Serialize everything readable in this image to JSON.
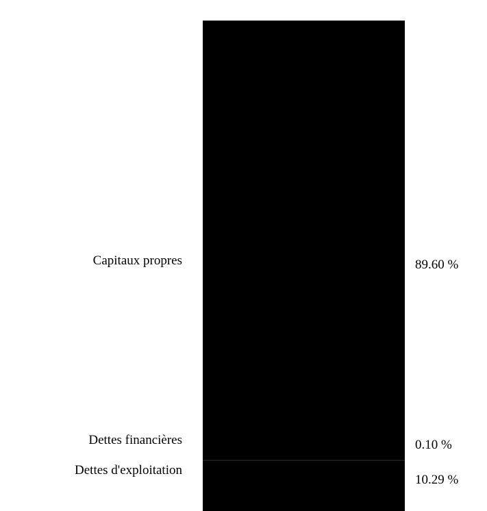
{
  "chart_data": {
    "type": "bar",
    "stacked": true,
    "unit": "%",
    "categories": [
      "Capitaux propres",
      "Dettes financières",
      "Dettes d'exploitation"
    ],
    "values": [
      89.6,
      0.1,
      10.29
    ],
    "value_labels": [
      "89.60 %",
      "0.10 %",
      "10.29 %"
    ],
    "bar_color": "#000000",
    "grid": false,
    "legend": "none"
  }
}
